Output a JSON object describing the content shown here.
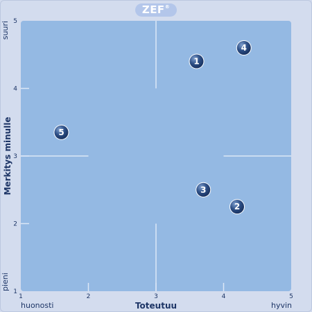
{
  "logo": {
    "text": "ZEF",
    "mark": "®"
  },
  "chart_data": {
    "type": "scatter",
    "title": "",
    "xlabel": "Toteutuu",
    "ylabel": "Merkitys minulle",
    "xlim": [
      1,
      5
    ],
    "ylim": [
      1,
      5
    ],
    "x_ticks": [
      1,
      2,
      3,
      4,
      5
    ],
    "y_ticks": [
      1,
      2,
      3,
      4,
      5
    ],
    "x_low_label": "huonosti",
    "x_high_label": "hyvin",
    "y_low_label": "pieni",
    "y_high_label": "suuri",
    "points": [
      {
        "label": "1",
        "x": 3.6,
        "y": 4.4
      },
      {
        "label": "2",
        "x": 4.2,
        "y": 2.25
      },
      {
        "label": "3",
        "x": 3.7,
        "y": 2.5
      },
      {
        "label": "4",
        "x": 4.3,
        "y": 4.6
      },
      {
        "label": "5",
        "x": 1.6,
        "y": 3.35
      }
    ],
    "colors": {
      "plot_bg": "#94b9e3",
      "point": "#2d4f86",
      "guides": "#dce7f6"
    }
  }
}
